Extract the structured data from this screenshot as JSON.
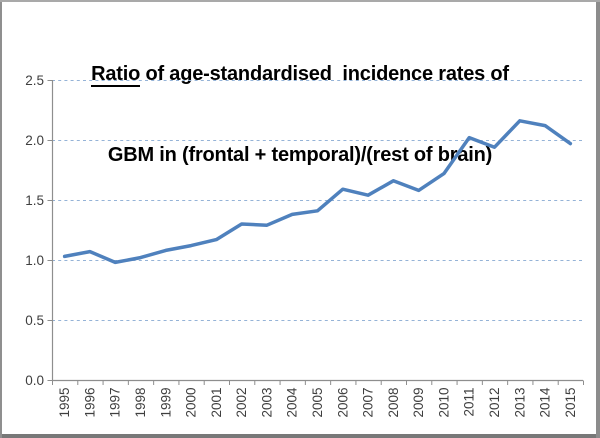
{
  "chart_data": {
    "type": "line",
    "title": {
      "underlined_word": "Ratio",
      "line1_rest": " of age-standardised  incidence rates of",
      "line2": "GBM in (frontal + temporal)/(rest of brain)"
    },
    "categories": [
      "1995",
      "1996",
      "1997",
      "1998",
      "1999",
      "2000",
      "2001",
      "2002",
      "2003",
      "2004",
      "2005",
      "2006",
      "2007",
      "2008",
      "2009",
      "2010",
      "2011",
      "2012",
      "2013",
      "2014",
      "2015"
    ],
    "series": [
      {
        "color": "#4F81BD",
        "values": [
          1.03,
          1.07,
          0.98,
          1.02,
          1.08,
          1.12,
          1.17,
          1.3,
          1.29,
          1.38,
          1.41,
          1.59,
          1.54,
          1.66,
          1.58,
          1.72,
          2.02,
          1.94,
          2.16,
          2.12,
          1.97
        ]
      }
    ],
    "xlabel": "",
    "ylabel": "",
    "ylim": [
      0,
      2.5
    ],
    "ytick_values": [
      0,
      0.5,
      1.0,
      1.5,
      2.0,
      2.5
    ],
    "ytick_labels": [
      "0.0",
      "0.5",
      "1.0",
      "1.5",
      "2.0",
      "2.5"
    ],
    "grid": "horizontal-dashed",
    "legend_position": "none",
    "colors": {
      "line": "#4F81BD",
      "gridline": "#95B3D7",
      "axis": "#8E8E8E",
      "tick_label": "#3F3F3F",
      "title": "#000000",
      "background": "#FFFFFF"
    }
  }
}
